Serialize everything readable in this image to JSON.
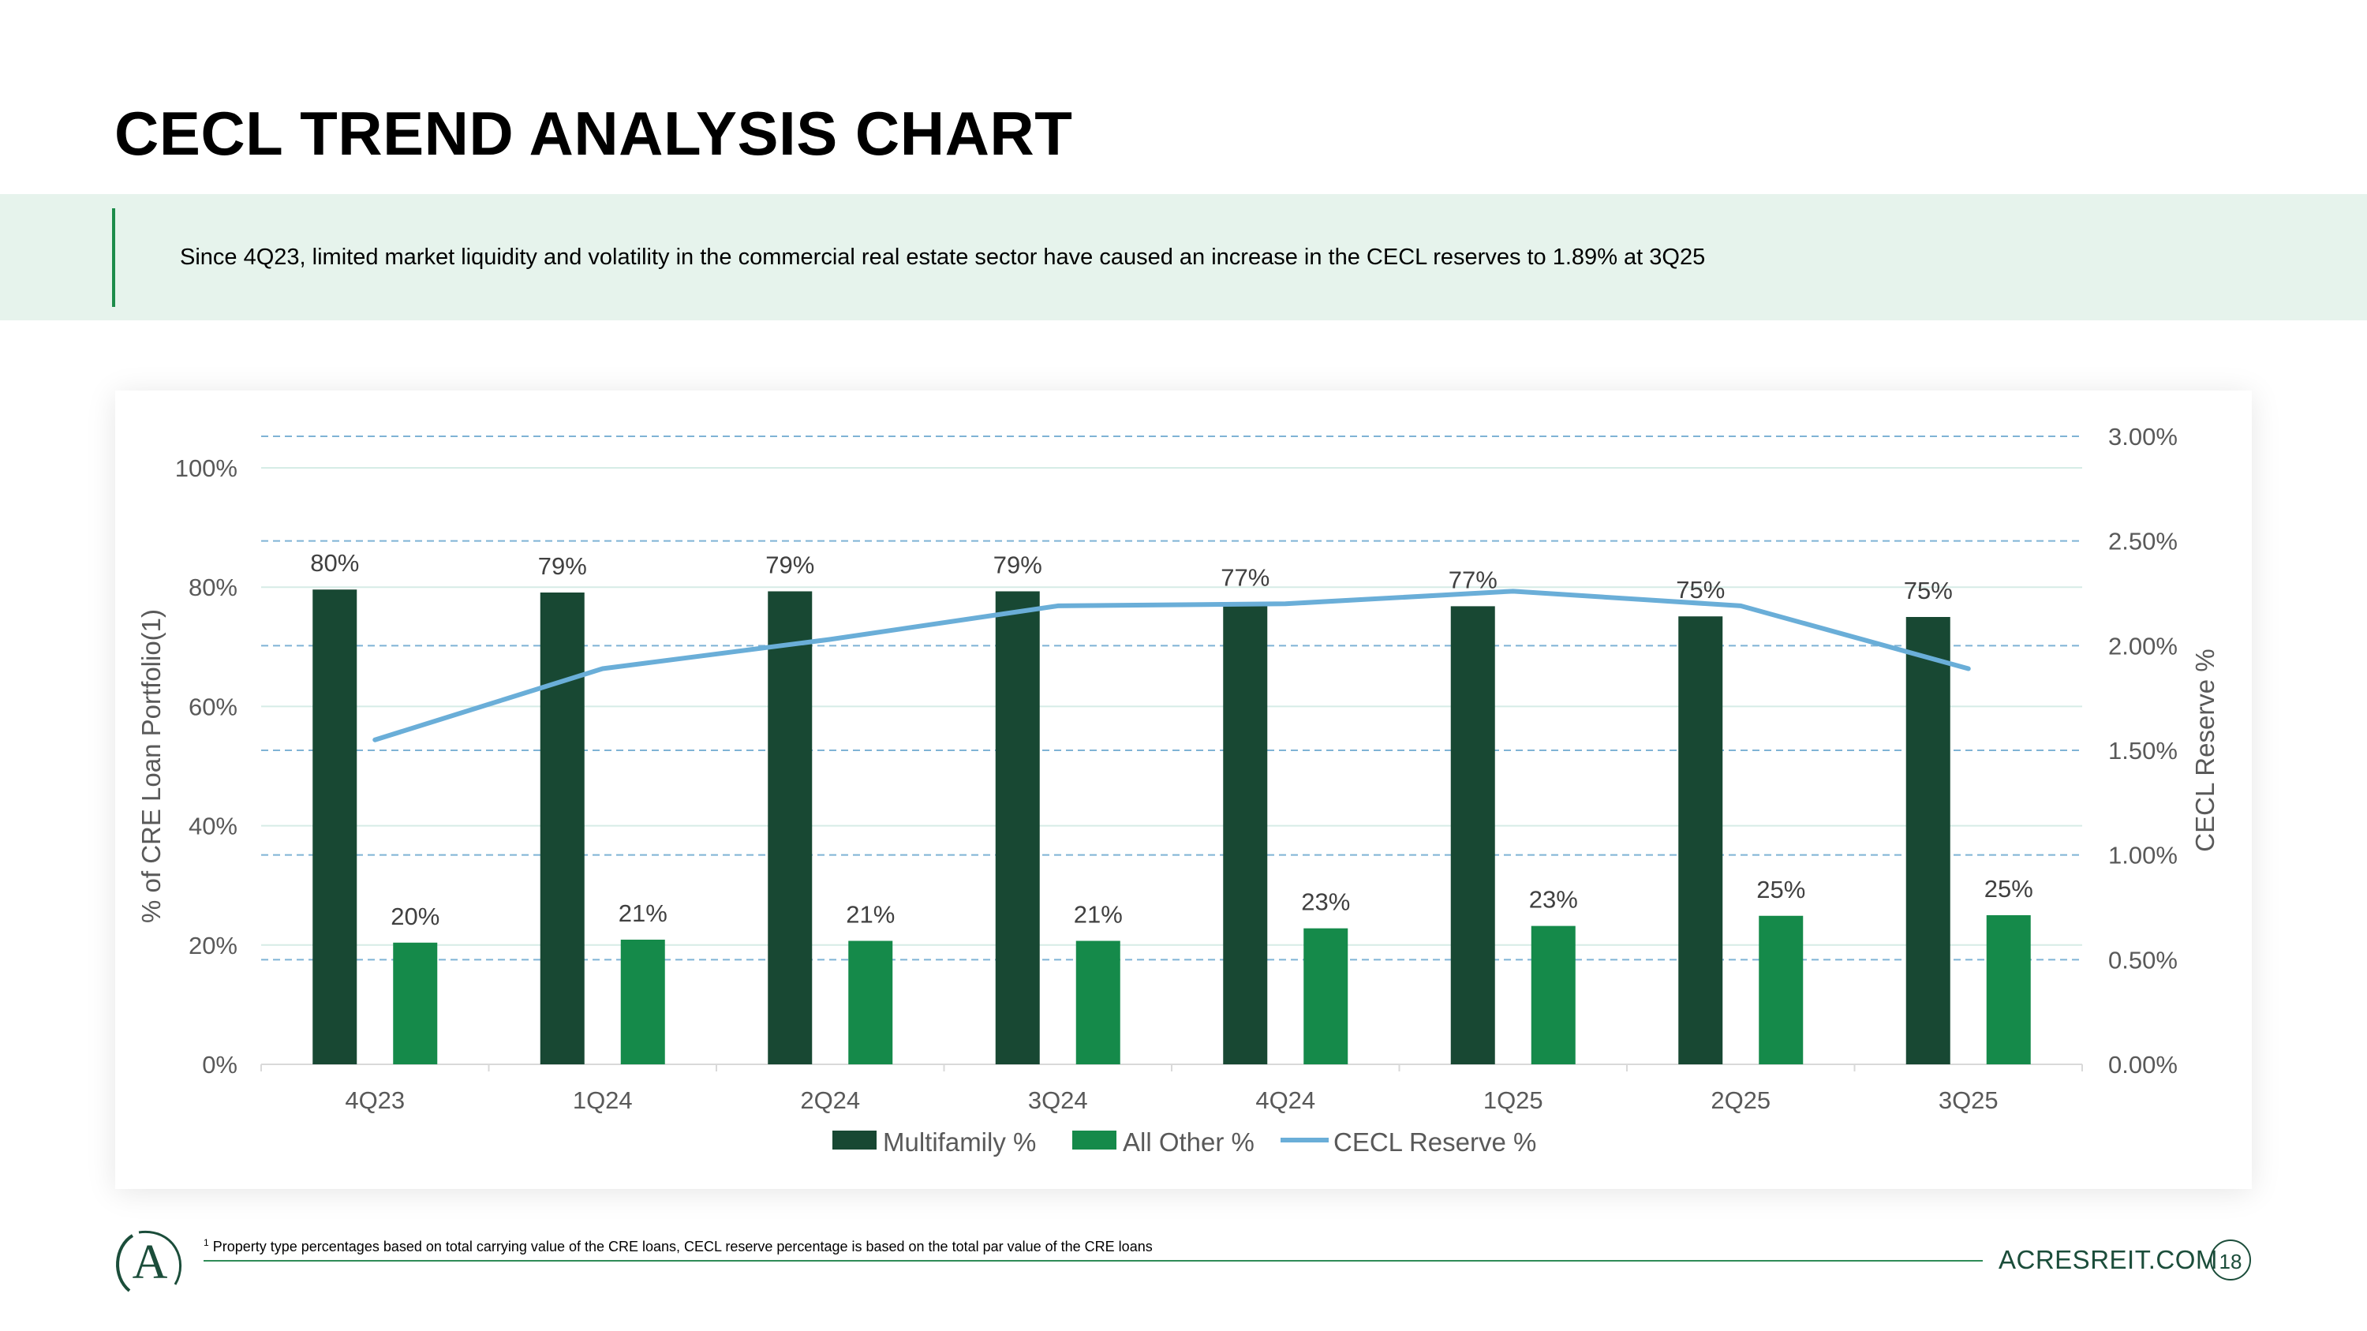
{
  "page": {
    "title": "CECL TREND ANALYSIS CHART",
    "banner_text": "Since 4Q23, limited market liquidity and volatility in the commercial real estate sector have caused an increase in the CECL reserves to 1.89% at 3Q25",
    "footnote_marker": "1",
    "footnote_text": "Property type percentages based on total carrying value of the CRE loans, CECL reserve percentage is based on the total par value of the CRE loans",
    "website": "ACRESREIT.COM",
    "page_number": "18",
    "logo_letter": "A"
  },
  "colors": {
    "multifamily": "#184833",
    "all_other": "#158a4a",
    "cecl": "#6aaed8",
    "gridline": "#d6ece6",
    "secondary_grid": "#7fb3d5",
    "brand": "#1b4d3a"
  },
  "chart_data": {
    "type": "bar",
    "categories": [
      "4Q23",
      "1Q24",
      "2Q24",
      "3Q24",
      "4Q24",
      "1Q25",
      "2Q25",
      "3Q25"
    ],
    "series": [
      {
        "name": "Multifamily %",
        "type": "bar",
        "axis": "left",
        "values": [
          79.6,
          79.1,
          79.3,
          79.3,
          77.2,
          76.8,
          75.1,
          75.0
        ],
        "labels": [
          "80%",
          "79%",
          "79%",
          "79%",
          "77%",
          "77%",
          "75%",
          "75%"
        ]
      },
      {
        "name": "All Other %",
        "type": "bar",
        "axis": "left",
        "values": [
          20.4,
          20.9,
          20.7,
          20.7,
          22.8,
          23.2,
          24.9,
          25.0
        ],
        "labels": [
          "20%",
          "21%",
          "21%",
          "21%",
          "23%",
          "23%",
          "25%",
          "25%"
        ]
      },
      {
        "name": "CECL Reserve %",
        "type": "line",
        "axis": "right",
        "values": [
          1.55,
          1.89,
          2.03,
          2.19,
          2.2,
          2.26,
          2.19,
          1.89
        ]
      }
    ],
    "y_left": {
      "label": "% of CRE Loan Portfolio(1)",
      "min": 0,
      "max": 100,
      "ticks": [
        0,
        20,
        40,
        60,
        80,
        100
      ],
      "tick_labels": [
        "0%",
        "20%",
        "40%",
        "60%",
        "80%",
        "100%"
      ]
    },
    "y_right": {
      "label": "CECL Reserve %",
      "min": 0,
      "max": 3,
      "ticks": [
        0,
        0.5,
        1,
        1.5,
        2,
        2.5,
        3
      ],
      "tick_labels": [
        "0.00%",
        "0.50%",
        "1.00%",
        "1.50%",
        "2.00%",
        "2.50%",
        "3.00%"
      ]
    },
    "legend": [
      "Multifamily %",
      "All Other %",
      "CECL Reserve %"
    ],
    "legend_position": "bottom",
    "grid": true
  }
}
